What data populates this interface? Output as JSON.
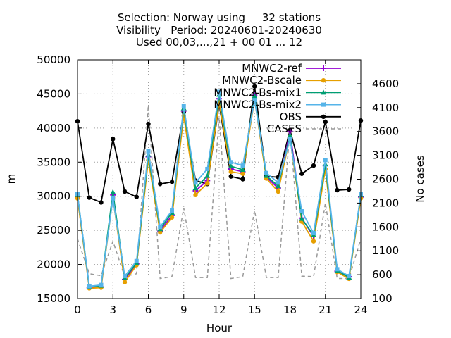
{
  "chart_data": {
    "type": "line",
    "title_lines": [
      "Selection: Norway using     32 stations",
      "Visibility   Period: 20240601-20240630",
      "Used 00,03,...,21 + 00 01 ... 12"
    ],
    "xlabel": "Hour",
    "ylabel": "m",
    "y2label": "No cases",
    "xlim": [
      0,
      24
    ],
    "ylim": [
      15000,
      50000
    ],
    "y2lim": [
      100,
      5100
    ],
    "x_ticks": [
      0,
      3,
      6,
      9,
      12,
      15,
      18,
      21,
      24
    ],
    "y_ticks": [
      15000,
      20000,
      25000,
      30000,
      35000,
      40000,
      45000,
      50000
    ],
    "y2_ticks": [
      100,
      600,
      1100,
      1600,
      2100,
      2600,
      3100,
      3600,
      4100,
      4600
    ],
    "legend_position": "top-right",
    "x": [
      0,
      1,
      2,
      3,
      4,
      5,
      6,
      7,
      8,
      9,
      10,
      11,
      12,
      13,
      14,
      15,
      16,
      17,
      18,
      19,
      20,
      21,
      22,
      23,
      24
    ],
    "series": [
      {
        "name": "MNWC2-ref",
        "color": "#9400d3",
        "marker": "plus",
        "axis": "y",
        "values": [
          29900,
          16600,
          16700,
          30200,
          17800,
          20100,
          35800,
          24900,
          27200,
          42500,
          30800,
          32300,
          44300,
          34000,
          33600,
          44800,
          32800,
          31200,
          39500,
          26800,
          24100,
          34500,
          19000,
          18200,
          29900
        ]
      },
      {
        "name": "MNWC2-Bscale",
        "color": "#e69f00",
        "marker": "circle",
        "axis": "y",
        "values": [
          29700,
          16500,
          16600,
          29800,
          17400,
          19900,
          35300,
          24700,
          26900,
          41800,
          30200,
          31900,
          43800,
          33600,
          33300,
          44200,
          32600,
          30700,
          38700,
          26300,
          23400,
          34000,
          18900,
          17900,
          29700
        ]
      },
      {
        "name": "MNWC2-Bs-mix1",
        "color": "#009e73",
        "marker": "triangle",
        "axis": "y",
        "values": [
          30200,
          16700,
          16900,
          30600,
          18000,
          20200,
          36100,
          25200,
          27600,
          42900,
          31200,
          33000,
          44900,
          34400,
          33900,
          44700,
          33000,
          31500,
          38900,
          26700,
          24300,
          34700,
          19100,
          18100,
          30200
        ]
      },
      {
        "name": "MNWC2-Bs-mix2",
        "color": "#56b4e9",
        "marker": "square",
        "axis": "y",
        "values": [
          30300,
          16800,
          17000,
          29700,
          18300,
          20500,
          36600,
          25500,
          27900,
          43200,
          32000,
          34000,
          45300,
          35000,
          34500,
          44100,
          33400,
          32000,
          38400,
          27800,
          24600,
          35300,
          19300,
          18300,
          30300
        ]
      },
      {
        "name": "OBS",
        "color": "#000000",
        "marker": "circle",
        "axis": "y",
        "values": [
          41000,
          29800,
          29100,
          38400,
          30700,
          29900,
          40600,
          31800,
          32100,
          42300,
          32300,
          31800,
          43500,
          32900,
          32500,
          46100,
          32900,
          32800,
          39700,
          33300,
          34500,
          40900,
          30900,
          31000,
          41100
        ]
      },
      {
        "name": "CASES",
        "color": "#999999",
        "marker": "none",
        "dashed": true,
        "axis": "y2",
        "values": [
          1350,
          620,
          580,
          1300,
          560,
          620,
          4150,
          520,
          560,
          2000,
          540,
          540,
          3900,
          520,
          560,
          1950,
          540,
          540,
          3650,
          570,
          560,
          2100,
          520,
          520,
          1350
        ]
      }
    ]
  }
}
